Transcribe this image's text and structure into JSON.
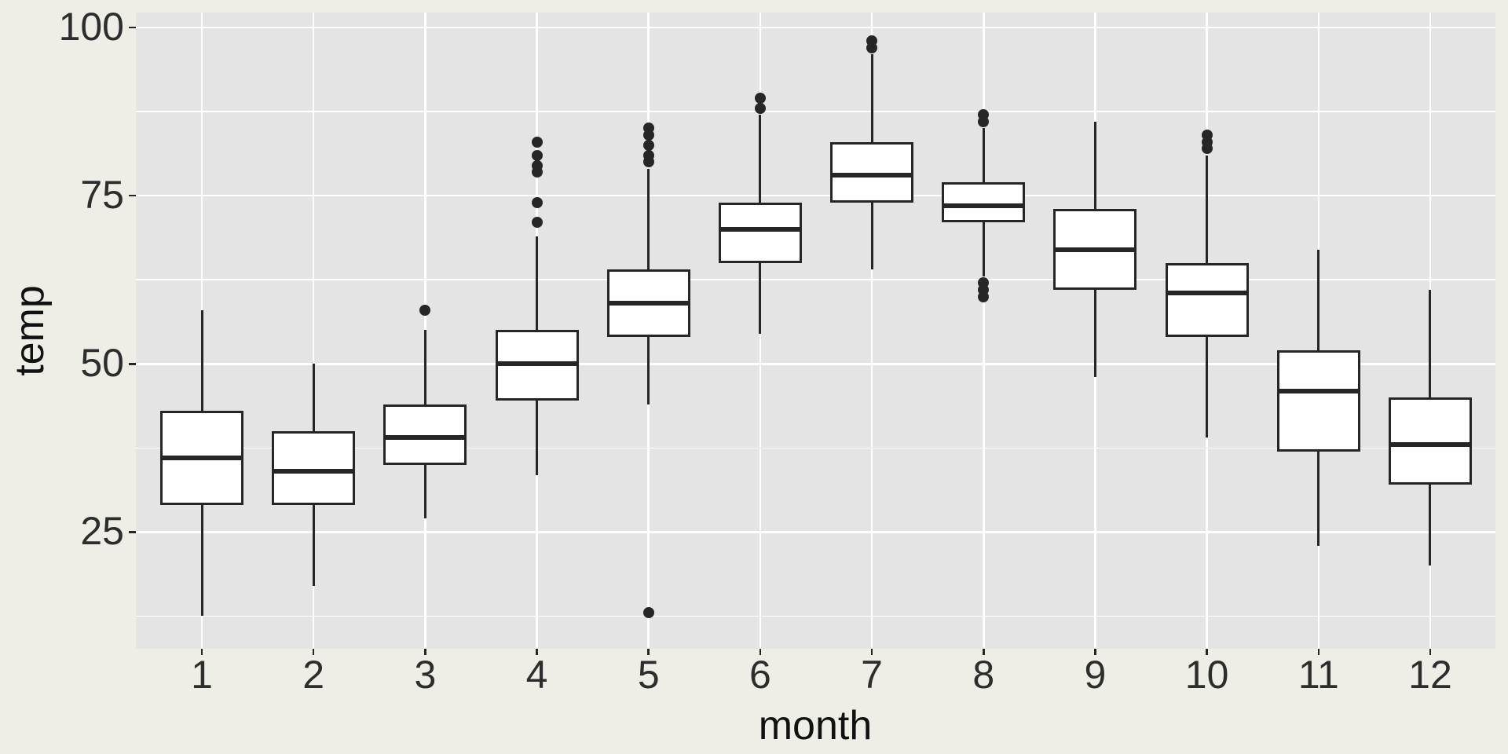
{
  "figure": {
    "background_color": "#eeeee7",
    "panel_color": "#e4e4e4",
    "gridline_color": "#ffffff"
  },
  "chart_data": {
    "type": "boxplot",
    "title": "",
    "xlabel": "month",
    "ylabel": "temp",
    "categories": [
      "1",
      "2",
      "3",
      "4",
      "5",
      "6",
      "7",
      "8",
      "9",
      "10",
      "11",
      "12"
    ],
    "y_major_ticks": [
      25,
      50,
      75,
      100
    ],
    "y_minor_gridlines": [
      12.5,
      37.5,
      62.5,
      87.5
    ],
    "ylim": [
      7.5,
      102.5
    ],
    "grid": "white major and minor horizontal gridlines plus vertical line per category on gray panel",
    "legend": "none",
    "series": [
      {
        "month": "1",
        "lower_whisker": 12.5,
        "q1": 29,
        "median": 36,
        "q3": 43,
        "upper_whisker": 58,
        "outliers": []
      },
      {
        "month": "2",
        "lower_whisker": 17,
        "q1": 29,
        "median": 34,
        "q3": 40,
        "upper_whisker": 50,
        "outliers": []
      },
      {
        "month": "3",
        "lower_whisker": 27,
        "q1": 35,
        "median": 39,
        "q3": 44,
        "upper_whisker": 55,
        "outliers": [
          58
        ]
      },
      {
        "month": "4",
        "lower_whisker": 33.5,
        "q1": 44.5,
        "median": 50,
        "q3": 55,
        "upper_whisker": 69,
        "outliers": [
          83,
          81,
          79.5,
          78.5,
          74,
          71
        ]
      },
      {
        "month": "5",
        "lower_whisker": 44,
        "q1": 54,
        "median": 59,
        "q3": 64,
        "upper_whisker": 79,
        "outliers": [
          85,
          84,
          82.5,
          81,
          80,
          13
        ]
      },
      {
        "month": "6",
        "lower_whisker": 54.5,
        "q1": 65,
        "median": 70,
        "q3": 74,
        "upper_whisker": 87,
        "outliers": [
          89.5,
          88
        ]
      },
      {
        "month": "7",
        "lower_whisker": 64,
        "q1": 74,
        "median": 78,
        "q3": 83,
        "upper_whisker": 96,
        "outliers": [
          98,
          97
        ]
      },
      {
        "month": "8",
        "lower_whisker": 63,
        "q1": 71,
        "median": 73.5,
        "q3": 77,
        "upper_whisker": 85,
        "outliers": [
          87,
          86,
          62,
          61,
          60
        ]
      },
      {
        "month": "9",
        "lower_whisker": 48,
        "q1": 61,
        "median": 67,
        "q3": 73,
        "upper_whisker": 86,
        "outliers": []
      },
      {
        "month": "10",
        "lower_whisker": 39,
        "q1": 54,
        "median": 60.5,
        "q3": 65,
        "upper_whisker": 81,
        "outliers": [
          84,
          83,
          82
        ]
      },
      {
        "month": "11",
        "lower_whisker": 23,
        "q1": 37,
        "median": 46,
        "q3": 52,
        "upper_whisker": 67,
        "outliers": []
      },
      {
        "month": "12",
        "lower_whisker": 20,
        "q1": 32,
        "median": 38,
        "q3": 45,
        "upper_whisker": 61,
        "outliers": []
      }
    ],
    "colors": {
      "box_fill": "#ffffff",
      "box_stroke": "#262626",
      "panel_bg": "#e4e4e4",
      "figure_bg": "#eeeee7",
      "gridline": "#ffffff",
      "axis_text": "#2d2d2d",
      "axis_title": "#111111"
    }
  }
}
